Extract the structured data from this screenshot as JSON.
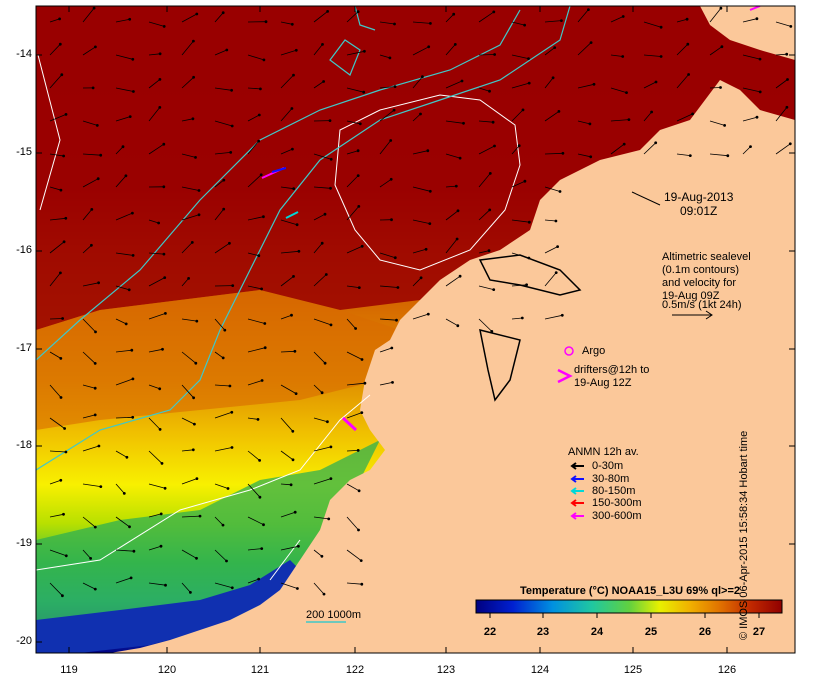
{
  "date_line1": "19-Aug-2013",
  "date_line2": "09:01Z",
  "alt_lines": [
    "Altimetric sealevel",
    "(0.1m contours)",
    "and velocity for",
    "19-Aug 09Z",
    "0.5m/s (1kt 24h)"
  ],
  "argo_label": "Argo",
  "drifters_lines": [
    "drifters@12h to",
    "19-Aug 12Z"
  ],
  "anmn_title": "ANMN 12h av.",
  "anmn_legend": [
    {
      "label": "0-30m",
      "color": "#000000"
    },
    {
      "label": "30-80m",
      "color": "#1010ff"
    },
    {
      "label": "80-150m",
      "color": "#00d8d8"
    },
    {
      "label": "150-300m",
      "color": "#ff0000"
    },
    {
      "label": "300-600m",
      "color": "#ff00ff"
    }
  ],
  "bathy_label": "200 1000m",
  "colorbar_title": "Temperature (°C) NOAA15_L3U 69% ql>=2",
  "colorbar_ticks": [
    "22",
    "23",
    "24",
    "25",
    "26",
    "27"
  ],
  "colorbar_range": [
    21.5,
    27.5
  ],
  "y_ticks": [
    "-14",
    "-15",
    "-16",
    "-17",
    "-18",
    "-19",
    "-20"
  ],
  "x_ticks": [
    "119",
    "120",
    "121",
    "122",
    "123",
    "124",
    "125",
    "126"
  ],
  "credit": "© IMOS 06-Apr-2015 15:58:34 Hobart time",
  "colors": {
    "land": "#fbc89a",
    "sst_warm": "#990000",
    "contour_sealevel": "#ffffff",
    "contour_bathy": "#40c8c8",
    "argo": "#ff00ff",
    "drifter": "#ff00ff"
  }
}
